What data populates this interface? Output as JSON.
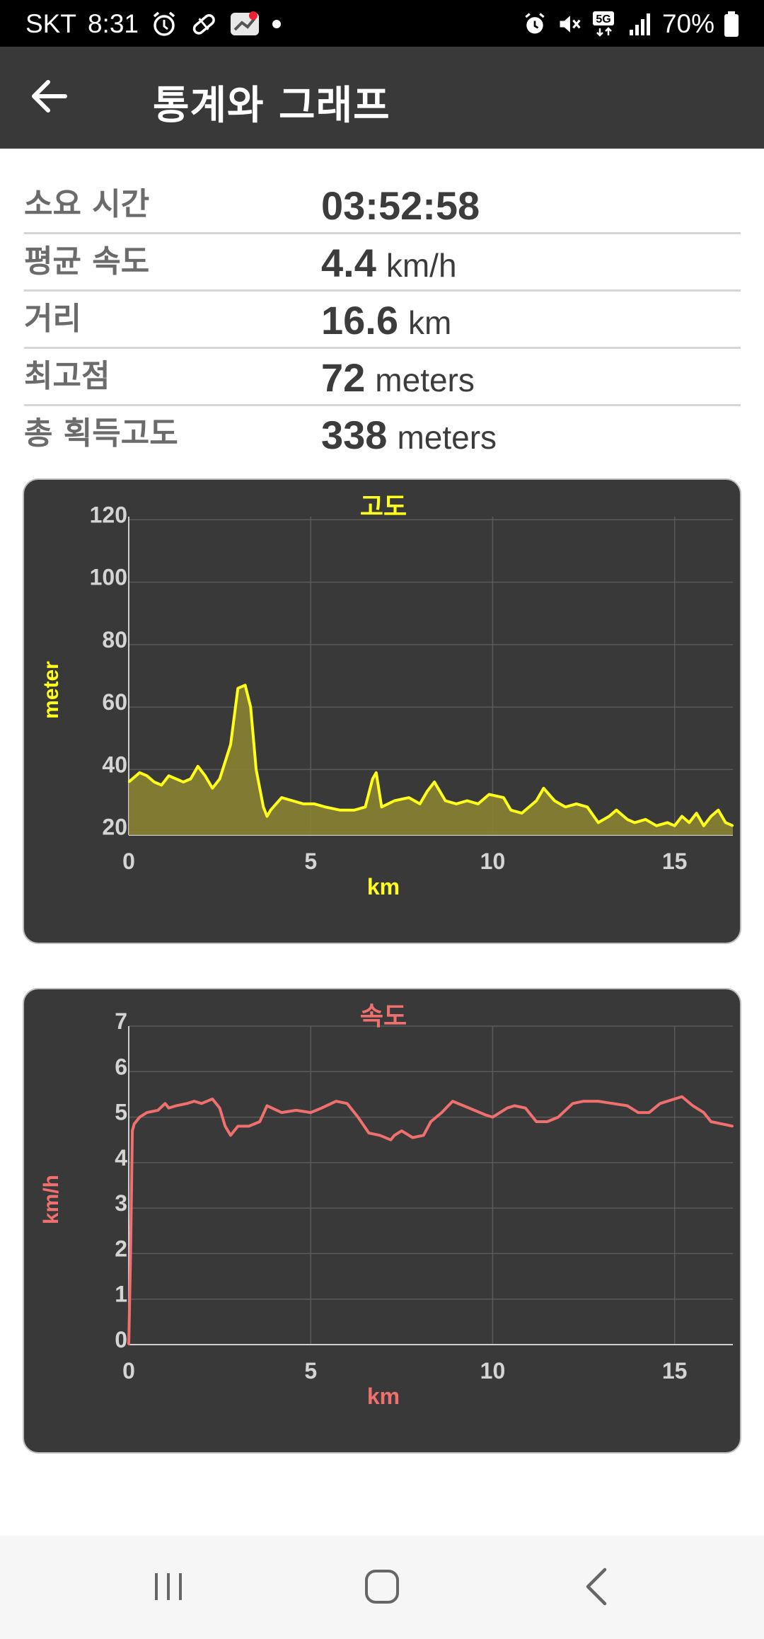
{
  "status_bar": {
    "carrier": "SKT",
    "time": "8:31",
    "network": "5G",
    "battery": "70%"
  },
  "app_bar": {
    "title": "통계와 그래프",
    "back_icon": "arrow-back-icon"
  },
  "stats": [
    {
      "label": "소요 시간",
      "value": "03:52:58",
      "unit": ""
    },
    {
      "label": "평균 속도",
      "value": "4.4",
      "unit": "km/h"
    },
    {
      "label": "거리",
      "value": "16.6",
      "unit": "km"
    },
    {
      "label": "최고점",
      "value": "72",
      "unit": "meters"
    },
    {
      "label": "총 획득고도",
      "value": "338",
      "unit": "meters"
    }
  ],
  "chart_data": [
    {
      "type": "area",
      "title": "고도",
      "xlabel": "km",
      "ylabel": "meter",
      "xlim": [
        0,
        16.6
      ],
      "ylim": [
        19,
        121
      ],
      "xticks": [
        0,
        5,
        10,
        15
      ],
      "yticks": [
        20,
        40,
        60,
        80,
        100,
        120
      ],
      "grid": true,
      "color": "#ffff1a",
      "fill_color": "#8a8233",
      "x": [
        0,
        0.3,
        0.5,
        0.7,
        0.9,
        1.1,
        1.3,
        1.5,
        1.7,
        1.9,
        2.1,
        2.3,
        2.5,
        2.8,
        3.0,
        3.2,
        3.35,
        3.5,
        3.7,
        3.8,
        3.9,
        4.2,
        4.5,
        4.8,
        5.1,
        5.4,
        5.8,
        6.2,
        6.5,
        6.7,
        6.8,
        6.95,
        7.3,
        7.7,
        8.0,
        8.2,
        8.4,
        8.7,
        9.0,
        9.3,
        9.6,
        9.9,
        10.3,
        10.5,
        10.8,
        11.2,
        11.4,
        11.7,
        12.0,
        12.3,
        12.6,
        12.9,
        13.2,
        13.4,
        13.7,
        13.9,
        14.2,
        14.5,
        14.8,
        15.0,
        15.2,
        15.4,
        15.6,
        15.8,
        16.0,
        16.2,
        16.4,
        16.6
      ],
      "y": [
        36,
        39,
        38,
        36,
        35,
        38,
        37,
        36,
        37,
        41,
        38,
        34,
        37,
        48,
        66,
        67,
        60,
        40,
        28,
        25,
        27,
        31,
        30,
        29,
        29,
        28,
        27,
        27,
        28,
        37,
        39,
        28,
        30,
        31,
        29,
        33,
        36,
        30,
        29,
        30,
        29,
        32,
        31,
        27,
        26,
        30,
        34,
        30,
        28,
        29,
        28,
        23,
        25,
        27,
        24,
        23,
        24,
        22,
        23,
        22,
        25,
        23,
        26,
        22,
        25,
        27,
        23,
        22
      ]
    },
    {
      "type": "line",
      "title": "속도",
      "xlabel": "km",
      "ylabel": "km/h",
      "xlim": [
        0,
        16.6
      ],
      "ylim": [
        0,
        7
      ],
      "xticks": [
        0,
        5,
        10,
        15
      ],
      "yticks": [
        0,
        1,
        2,
        3,
        4,
        5,
        6,
        7
      ],
      "grid": true,
      "color": "#f07070",
      "x": [
        0,
        0.05,
        0.1,
        0.15,
        0.3,
        0.5,
        0.8,
        1.0,
        1.1,
        1.3,
        1.6,
        1.8,
        2.0,
        2.3,
        2.5,
        2.65,
        2.8,
        3.0,
        3.3,
        3.6,
        3.8,
        4.2,
        4.6,
        5.0,
        5.3,
        5.7,
        6.0,
        6.3,
        6.6,
        6.9,
        7.2,
        7.3,
        7.5,
        7.8,
        8.1,
        8.3,
        8.6,
        8.9,
        9.2,
        9.5,
        9.8,
        10.0,
        10.4,
        10.6,
        10.9,
        11.2,
        11.5,
        11.8,
        12.2,
        12.5,
        12.9,
        13.3,
        13.7,
        14.0,
        14.3,
        14.6,
        15.0,
        15.2,
        15.5,
        15.8,
        16.0,
        16.3,
        16.6
      ],
      "y": [
        0,
        2.0,
        4.7,
        4.85,
        5.0,
        5.1,
        5.15,
        5.3,
        5.2,
        5.25,
        5.3,
        5.35,
        5.3,
        5.4,
        5.2,
        4.8,
        4.6,
        4.8,
        4.8,
        4.9,
        5.25,
        5.1,
        5.15,
        5.1,
        5.2,
        5.35,
        5.3,
        5.0,
        4.65,
        4.6,
        4.5,
        4.6,
        4.7,
        4.55,
        4.6,
        4.9,
        5.1,
        5.35,
        5.25,
        5.15,
        5.05,
        5.0,
        5.2,
        5.25,
        5.2,
        4.9,
        4.9,
        5.0,
        5.3,
        5.35,
        5.35,
        5.3,
        5.25,
        5.1,
        5.1,
        5.3,
        5.4,
        5.45,
        5.25,
        5.1,
        4.9,
        4.85,
        4.8
      ]
    }
  ],
  "nav": {
    "recent_icon": "recent-apps-icon",
    "home_icon": "home-icon",
    "back_icon": "nav-back-icon"
  }
}
